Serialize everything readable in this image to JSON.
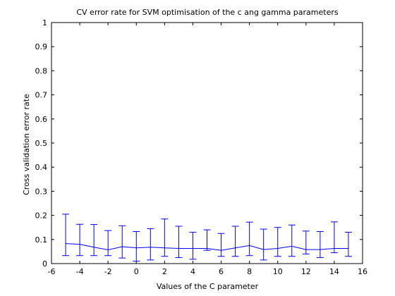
{
  "chart_data": {
    "type": "line",
    "title": "CV error rate for SVM optimisation of the c ang gamma parameters",
    "xlabel": "Values of the C parameter",
    "ylabel": "Cross validation error rate",
    "xlim": [
      -6,
      16
    ],
    "ylim": [
      0,
      1
    ],
    "xticks": [
      -6,
      -4,
      -2,
      0,
      2,
      4,
      6,
      8,
      10,
      12,
      14,
      16
    ],
    "yticks": [
      0,
      0.1,
      0.2,
      0.3,
      0.4,
      0.5,
      0.6,
      0.7,
      0.8,
      0.9,
      1
    ],
    "grid": false,
    "line_color": "#0000ff",
    "series": [
      {
        "x": [
          -5,
          -4,
          -3,
          -2,
          -1,
          0,
          1,
          2,
          3,
          4,
          5,
          6,
          7,
          8,
          9,
          10,
          11,
          12,
          13,
          14,
          15
        ],
        "y": [
          0.083,
          0.08,
          0.068,
          0.057,
          0.07,
          0.065,
          0.068,
          0.065,
          0.063,
          0.063,
          0.063,
          0.055,
          0.065,
          0.075,
          0.058,
          0.063,
          0.072,
          0.058,
          0.058,
          0.063,
          0.063
        ],
        "err_low": [
          0.033,
          0.033,
          0.033,
          0.033,
          0.023,
          0.01,
          0.015,
          0.03,
          0.025,
          0.018,
          0.055,
          0.03,
          0.03,
          0.033,
          0.015,
          0.03,
          0.03,
          0.04,
          0.025,
          0.045,
          0.03
        ],
        "err_high": [
          0.205,
          0.163,
          0.162,
          0.137,
          0.157,
          0.133,
          0.145,
          0.185,
          0.155,
          0.13,
          0.14,
          0.125,
          0.155,
          0.172,
          0.143,
          0.15,
          0.16,
          0.135,
          0.133,
          0.173,
          0.13
        ]
      }
    ]
  }
}
